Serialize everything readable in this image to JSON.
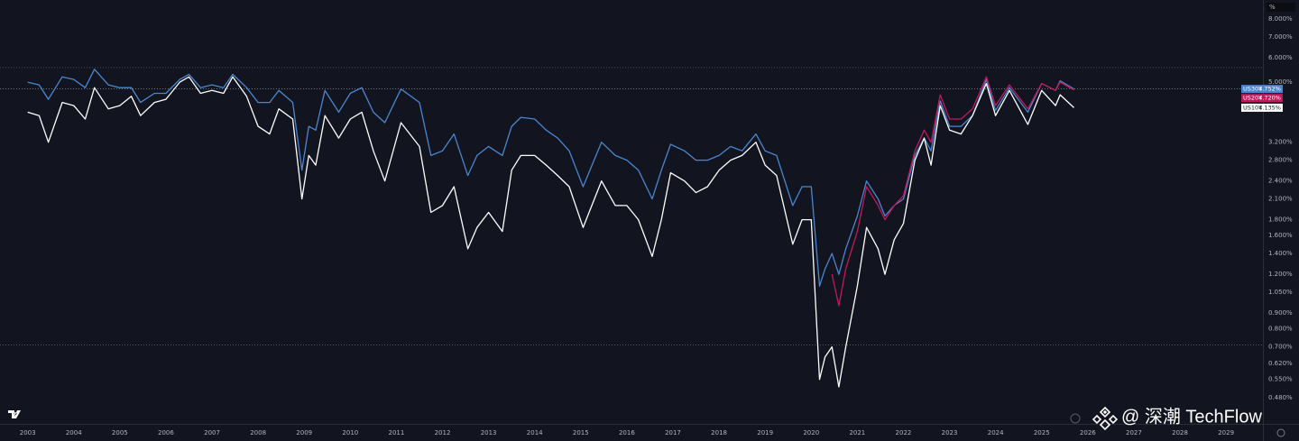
{
  "chart_data": {
    "type": "line",
    "log_scale": true,
    "grid": false,
    "background": "#12151f",
    "y_unit_label": "%",
    "watermark": "@ 深潮 TechFlow",
    "xlim": [
      2002.4,
      2029.8
    ],
    "xticks": [
      2003,
      2004,
      2005,
      2006,
      2007,
      2008,
      2009,
      2010,
      2011,
      2012,
      2013,
      2014,
      2015,
      2016,
      2017,
      2018,
      2019,
      2020,
      2021,
      2022,
      2023,
      2024,
      2025,
      2026,
      2027,
      2028,
      2029
    ],
    "ylim": [
      0.417,
      9.2
    ],
    "yticks": [
      {
        "value": 8,
        "label": "8.000%"
      },
      {
        "value": 7,
        "label": "7.000%"
      },
      {
        "value": 6,
        "label": "6.000%"
      },
      {
        "value": 5,
        "label": "5.000%"
      },
      {
        "value": 3.2,
        "label": "3.200%"
      },
      {
        "value": 2.8,
        "label": "2.800%"
      },
      {
        "value": 2.4,
        "label": "2.400%"
      },
      {
        "value": 2.1,
        "label": "2.100%"
      },
      {
        "value": 1.8,
        "label": "1.800%"
      },
      {
        "value": 1.6,
        "label": "1.600%"
      },
      {
        "value": 1.4,
        "label": "1.400%"
      },
      {
        "value": 1.2,
        "label": "1.200%"
      },
      {
        "value": 1.05,
        "label": "1.050%"
      },
      {
        "value": 0.9,
        "label": "0.900%"
      },
      {
        "value": 0.8,
        "label": "0.800%"
      },
      {
        "value": 0.7,
        "label": "0.700%"
      },
      {
        "value": 0.62,
        "label": "0.620%"
      },
      {
        "value": 0.55,
        "label": "0.550%"
      },
      {
        "value": 0.48,
        "label": "0.480%"
      }
    ],
    "hlines": [
      5.57,
      0.71
    ],
    "x": [
      2003.0,
      2003.25,
      2003.45,
      2003.75,
      2004.0,
      2004.25,
      2004.45,
      2004.75,
      2005.0,
      2005.25,
      2005.45,
      2005.75,
      2006.0,
      2006.3,
      2006.5,
      2006.75,
      2007.0,
      2007.25,
      2007.45,
      2007.75,
      2008.0,
      2008.25,
      2008.45,
      2008.75,
      2008.95,
      2009.1,
      2009.25,
      2009.45,
      2009.75,
      2010.0,
      2010.25,
      2010.5,
      2010.75,
      2011.1,
      2011.5,
      2011.75,
      2012.0,
      2012.25,
      2012.55,
      2012.75,
      2013.0,
      2013.3,
      2013.5,
      2013.7,
      2014.0,
      2014.25,
      2014.5,
      2014.75,
      2015.05,
      2015.45,
      2015.75,
      2016.0,
      2016.25,
      2016.55,
      2016.75,
      2016.95,
      2017.25,
      2017.5,
      2017.75,
      2018.0,
      2018.25,
      2018.5,
      2018.8,
      2019.0,
      2019.25,
      2019.6,
      2019.8,
      2020.0,
      2020.18,
      2020.3,
      2020.45,
      2020.6,
      2020.75,
      2021.0,
      2021.2,
      2021.45,
      2021.6,
      2021.8,
      2022.0,
      2022.25,
      2022.45,
      2022.6,
      2022.8,
      2023.0,
      2023.25,
      2023.5,
      2023.8,
      2024.0,
      2024.3,
      2024.7,
      2025.0,
      2025.3,
      2025.4,
      2025.7
    ],
    "series": [
      {
        "name": "US30Y",
        "color": "#4a86d0",
        "last_label": "4.752%",
        "values": [
          5.0,
          4.9,
          4.4,
          5.2,
          5.1,
          4.8,
          5.5,
          4.9,
          4.8,
          4.8,
          4.3,
          4.6,
          4.6,
          5.1,
          5.3,
          4.8,
          4.9,
          4.8,
          5.3,
          4.8,
          4.3,
          4.3,
          4.7,
          4.3,
          2.6,
          3.6,
          3.5,
          4.7,
          4.0,
          4.6,
          4.8,
          4.0,
          3.7,
          4.75,
          4.3,
          2.9,
          3.0,
          3.4,
          2.5,
          2.9,
          3.1,
          2.9,
          3.6,
          3.85,
          3.8,
          3.5,
          3.3,
          3.0,
          2.3,
          3.2,
          2.9,
          2.8,
          2.6,
          2.1,
          2.6,
          3.15,
          3.0,
          2.8,
          2.8,
          2.9,
          3.1,
          3.0,
          3.4,
          3.0,
          2.9,
          2.0,
          2.3,
          2.3,
          1.1,
          1.25,
          1.4,
          1.2,
          1.45,
          1.85,
          2.4,
          2.1,
          1.85,
          2.0,
          2.1,
          2.9,
          3.3,
          3.0,
          4.35,
          3.6,
          3.6,
          3.9,
          5.1,
          4.05,
          4.8,
          4.0,
          4.95,
          4.7,
          5.05,
          4.752
        ]
      },
      {
        "name": "US20Y",
        "color": "#c2185b",
        "last_label": "4.720%",
        "values": [
          null,
          null,
          null,
          null,
          null,
          null,
          null,
          null,
          null,
          null,
          null,
          null,
          null,
          null,
          null,
          null,
          null,
          null,
          null,
          null,
          null,
          null,
          null,
          null,
          null,
          null,
          null,
          null,
          null,
          null,
          null,
          null,
          null,
          null,
          null,
          null,
          null,
          null,
          null,
          null,
          null,
          null,
          null,
          null,
          null,
          null,
          null,
          null,
          null,
          null,
          null,
          null,
          null,
          null,
          null,
          null,
          null,
          null,
          null,
          null,
          null,
          null,
          null,
          null,
          null,
          null,
          null,
          null,
          null,
          null,
          1.2,
          0.95,
          1.25,
          1.65,
          2.3,
          2.0,
          1.8,
          2.0,
          2.15,
          3.0,
          3.5,
          3.2,
          4.55,
          3.8,
          3.8,
          4.1,
          5.2,
          4.2,
          4.9,
          4.1,
          4.95,
          4.7,
          5.0,
          4.72
        ]
      },
      {
        "name": "US10Y",
        "color": "#ffffff",
        "last_label": "4.135%",
        "values": [
          4.0,
          3.9,
          3.2,
          4.3,
          4.2,
          3.8,
          4.8,
          4.1,
          4.2,
          4.5,
          3.9,
          4.3,
          4.4,
          5.0,
          5.2,
          4.6,
          4.7,
          4.6,
          5.2,
          4.5,
          3.6,
          3.4,
          4.1,
          3.8,
          2.1,
          2.9,
          2.7,
          3.9,
          3.3,
          3.8,
          4.0,
          3.0,
          2.4,
          3.7,
          3.1,
          1.9,
          2.0,
          2.3,
          1.45,
          1.7,
          1.9,
          1.65,
          2.6,
          2.9,
          2.9,
          2.7,
          2.5,
          2.3,
          1.7,
          2.4,
          2.0,
          2.0,
          1.8,
          1.37,
          1.8,
          2.55,
          2.4,
          2.2,
          2.3,
          2.6,
          2.8,
          2.9,
          3.2,
          2.7,
          2.5,
          1.5,
          1.8,
          1.8,
          0.55,
          0.65,
          0.7,
          0.52,
          0.7,
          1.1,
          1.7,
          1.45,
          1.2,
          1.55,
          1.75,
          2.8,
          3.3,
          2.7,
          4.2,
          3.5,
          3.4,
          3.9,
          4.95,
          3.9,
          4.7,
          3.65,
          4.7,
          4.2,
          4.55,
          4.135
        ]
      }
    ]
  }
}
